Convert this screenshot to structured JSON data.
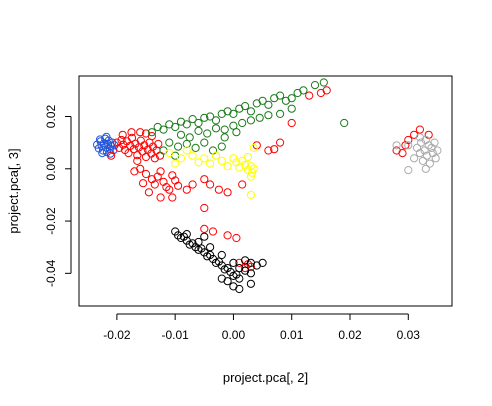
{
  "chart_data": {
    "type": "scatter",
    "xlabel": "project.pca[, 2]",
    "ylabel": "project.pca[, 3]",
    "xlim": [
      -0.0265,
      0.0375
    ],
    "ylim": [
      -0.0525,
      0.0355
    ],
    "x_ticks": [
      -0.02,
      -0.01,
      0.0,
      0.01,
      0.02,
      0.03
    ],
    "x_tick_labels": [
      "-0.02",
      "-0.01",
      "0.00",
      "0.01",
      "0.02",
      "0.03"
    ],
    "y_ticks": [
      -0.04,
      -0.02,
      0.0,
      0.02
    ],
    "y_tick_labels": [
      "-0.04",
      "-0.02",
      "0.00",
      "0.02"
    ],
    "grid": false,
    "legend": "none",
    "marker": "open-circle",
    "series": [
      {
        "color": "#2255dd",
        "points": [
          [
            -0.0234,
            0.0092
          ],
          [
            -0.0231,
            0.0078
          ],
          [
            -0.0228,
            0.0105
          ],
          [
            -0.0226,
            0.0088
          ],
          [
            -0.0224,
            0.007
          ],
          [
            -0.0222,
            0.0098
          ],
          [
            -0.022,
            0.0115
          ],
          [
            -0.0219,
            0.0082
          ],
          [
            -0.0217,
            0.0064
          ],
          [
            -0.0215,
            0.0095
          ],
          [
            -0.0214,
            0.0108
          ],
          [
            -0.0212,
            0.0076
          ],
          [
            -0.021,
            0.0088
          ],
          [
            -0.0208,
            0.01
          ],
          [
            -0.0206,
            0.0071
          ],
          [
            -0.0204,
            0.009
          ],
          [
            -0.0225,
            0.006
          ],
          [
            -0.0218,
            0.0122
          ],
          [
            -0.0211,
            0.0058
          ],
          [
            -0.0229,
            0.0112
          ]
        ]
      },
      {
        "color": "#ff0000",
        "points": [
          [
            -0.02,
            0.01
          ],
          [
            -0.0196,
            0.008
          ],
          [
            -0.0192,
            0.011
          ],
          [
            -0.0189,
            0.0092
          ],
          [
            -0.0186,
            0.0072
          ],
          [
            -0.0183,
            0.0105
          ],
          [
            -0.018,
            0.006
          ],
          [
            -0.0177,
            0.0088
          ],
          [
            -0.0174,
            0.0118
          ],
          [
            -0.0171,
            0.0075
          ],
          [
            -0.0168,
            0.0096
          ],
          [
            -0.0165,
            0.0052
          ],
          [
            -0.0162,
            0.0082
          ],
          [
            -0.0159,
            0.0108
          ],
          [
            -0.0156,
            0.0066
          ],
          [
            -0.0153,
            0.009
          ],
          [
            -0.015,
            0.0045
          ],
          [
            -0.0147,
            0.0073
          ],
          [
            -0.0144,
            0.01
          ],
          [
            -0.0141,
            0.0058
          ],
          [
            -0.0138,
            0.0085
          ],
          [
            -0.0135,
            0.004
          ],
          [
            -0.0132,
            0.007
          ],
          [
            -0.0129,
            0.0095
          ],
          [
            -0.0126,
            0.005
          ],
          [
            -0.016,
            0.0
          ],
          [
            -0.015,
            -0.002
          ],
          [
            -0.014,
            -0.004
          ],
          [
            -0.0135,
            -0.006
          ],
          [
            -0.013,
            -0.003
          ],
          [
            -0.0125,
            -0.001
          ],
          [
            -0.012,
            -0.005
          ],
          [
            -0.0115,
            -0.007
          ],
          [
            -0.011,
            -0.008
          ],
          [
            -0.0105,
            -0.0025
          ],
          [
            -0.01,
            -0.0045
          ],
          [
            -0.0095,
            -0.0065
          ],
          [
            -0.017,
            -0.001
          ],
          [
            -0.0155,
            -0.0055
          ],
          [
            -0.0145,
            -0.009
          ],
          [
            -0.0125,
            -0.011
          ],
          [
            -0.0105,
            -0.011
          ],
          [
            -0.015,
            0.0135
          ],
          [
            -0.016,
            0.014
          ],
          [
            -0.014,
            0.0125
          ],
          [
            -0.008,
            -0.008
          ],
          [
            -0.007,
            -0.006
          ],
          [
            -0.005,
            -0.004
          ],
          [
            -0.004,
            -0.006
          ],
          [
            -0.0025,
            -0.008
          ],
          [
            -0.001,
            -0.009
          ],
          [
            0.0015,
            -0.006
          ],
          [
            -0.005,
            -0.015
          ],
          [
            -0.005,
            -0.023
          ],
          [
            -0.0035,
            -0.024
          ],
          [
            -0.001,
            -0.0255
          ],
          [
            0.0005,
            -0.0265
          ],
          [
            0.001,
            -0.036
          ],
          [
            0.002,
            -0.038
          ],
          [
            0.0025,
            -0.0365
          ],
          [
            0.003,
            -0.0375
          ],
          [
            0.004,
            0.009
          ],
          [
            0.006,
            0.007
          ],
          [
            0.007,
            0.0075
          ],
          [
            0.008,
            0.01
          ],
          [
            0.01,
            0.0175
          ],
          [
            0.013,
            0.028
          ],
          [
            0.015,
            0.029
          ],
          [
            0.016,
            0.03
          ],
          [
            0.028,
            0.007
          ],
          [
            0.029,
            0.006
          ],
          [
            0.0295,
            0.009
          ],
          [
            0.03,
            0.011
          ],
          [
            0.031,
            0.013
          ],
          [
            0.032,
            0.015
          ],
          [
            0.0335,
            0.013
          ],
          [
            -0.021,
            0.005
          ],
          [
            -0.019,
            0.013
          ],
          [
            -0.0175,
            0.014
          ],
          [
            -0.0165,
            0.003
          ]
        ]
      },
      {
        "color": "#1a7a1a",
        "points": [
          [
            -0.014,
            0.014
          ],
          [
            -0.013,
            0.016
          ],
          [
            -0.012,
            0.015
          ],
          [
            -0.011,
            0.017
          ],
          [
            -0.01,
            0.016
          ],
          [
            -0.009,
            0.018
          ],
          [
            -0.008,
            0.017
          ],
          [
            -0.007,
            0.019
          ],
          [
            -0.006,
            0.0175
          ],
          [
            -0.005,
            0.0195
          ],
          [
            -0.004,
            0.02
          ],
          [
            -0.003,
            0.0185
          ],
          [
            -0.002,
            0.021
          ],
          [
            -0.001,
            0.022
          ],
          [
            0.0,
            0.021
          ],
          [
            0.001,
            0.023
          ],
          [
            0.002,
            0.024
          ],
          [
            0.003,
            0.022
          ],
          [
            0.004,
            0.025
          ],
          [
            0.005,
            0.026
          ],
          [
            0.006,
            0.0245
          ],
          [
            0.007,
            0.027
          ],
          [
            0.008,
            0.028
          ],
          [
            0.009,
            0.026
          ],
          [
            0.01,
            0.027
          ],
          [
            0.011,
            0.029
          ],
          [
            0.012,
            0.03
          ],
          [
            0.014,
            0.032
          ],
          [
            0.0155,
            0.033
          ],
          [
            -0.009,
            0.013
          ],
          [
            -0.0075,
            0.012
          ],
          [
            -0.006,
            0.0145
          ],
          [
            -0.0045,
            0.0135
          ],
          [
            -0.003,
            0.0155
          ],
          [
            -0.0015,
            0.015
          ],
          [
            0.0,
            0.0165
          ],
          [
            0.0015,
            0.0175
          ],
          [
            0.003,
            0.0185
          ],
          [
            0.0045,
            0.0195
          ],
          [
            0.006,
            0.0205
          ],
          [
            -0.011,
            0.01
          ],
          [
            -0.0095,
            0.0085
          ],
          [
            -0.008,
            0.0095
          ],
          [
            -0.0065,
            0.008
          ],
          [
            -0.005,
            0.01
          ],
          [
            -0.0035,
            0.007
          ],
          [
            -0.002,
            0.0085
          ],
          [
            0.019,
            0.0175
          ],
          [
            0.008,
            0.021
          ],
          [
            0.01,
            0.023
          ],
          [
            -0.012,
            0.007
          ],
          [
            -0.01,
            0.005
          ],
          [
            -0.0015,
            0.012
          ],
          [
            0.0005,
            0.014
          ]
        ]
      },
      {
        "color": "#ffff00",
        "points": [
          [
            -0.011,
            0.006
          ],
          [
            -0.009,
            0.004
          ],
          [
            -0.007,
            0.005
          ],
          [
            -0.005,
            0.004
          ],
          [
            -0.004,
            0.002
          ],
          [
            -0.003,
            0.005
          ],
          [
            -0.002,
            0.003
          ],
          [
            -0.001,
            0.001
          ],
          [
            0.0,
            0.004
          ],
          [
            0.0005,
            0.0025
          ],
          [
            0.001,
            0.0005
          ],
          [
            0.0015,
            0.003
          ],
          [
            0.002,
            0.0015
          ],
          [
            0.0025,
            -0.0005
          ],
          [
            0.003,
            0.001
          ],
          [
            0.0032,
            -0.0015
          ],
          [
            0.0035,
            0.0
          ],
          [
            0.003,
            -0.003
          ],
          [
            0.0025,
            0.0045
          ],
          [
            -0.008,
            0.007
          ],
          [
            -0.01,
            0.002
          ],
          [
            -0.006,
            0.0025
          ],
          [
            0.0035,
            0.008
          ],
          [
            0.003,
            -0.01
          ]
        ]
      },
      {
        "color": "#000000",
        "points": [
          [
            -0.01,
            -0.024
          ],
          [
            -0.0095,
            -0.0255
          ],
          [
            -0.009,
            -0.0265
          ],
          [
            -0.0085,
            -0.026
          ],
          [
            -0.008,
            -0.0275
          ],
          [
            -0.0075,
            -0.029
          ],
          [
            -0.007,
            -0.0285
          ],
          [
            -0.0065,
            -0.03
          ],
          [
            -0.006,
            -0.031
          ],
          [
            -0.0055,
            -0.0305
          ],
          [
            -0.005,
            -0.032
          ],
          [
            -0.0045,
            -0.0335
          ],
          [
            -0.004,
            -0.033
          ],
          [
            -0.0035,
            -0.0345
          ],
          [
            -0.003,
            -0.036
          ],
          [
            -0.0025,
            -0.0355
          ],
          [
            -0.002,
            -0.037
          ],
          [
            -0.0015,
            -0.0385
          ],
          [
            -0.001,
            -0.038
          ],
          [
            -0.0005,
            -0.0395
          ],
          [
            0.0,
            -0.041
          ],
          [
            0.0005,
            -0.0405
          ],
          [
            0.001,
            -0.042
          ],
          [
            -0.008,
            -0.025
          ],
          [
            -0.006,
            -0.028
          ],
          [
            -0.004,
            -0.03
          ],
          [
            -0.002,
            -0.033
          ],
          [
            0.0,
            -0.036
          ],
          [
            0.001,
            -0.038
          ],
          [
            0.002,
            -0.039
          ],
          [
            0.003,
            -0.04
          ],
          [
            0.004,
            -0.037
          ],
          [
            0.005,
            -0.036
          ],
          [
            0.003,
            -0.036
          ],
          [
            0.002,
            -0.035
          ],
          [
            -0.005,
            -0.026
          ],
          [
            -0.001,
            -0.043
          ],
          [
            0.0,
            -0.045
          ],
          [
            0.001,
            -0.046
          ],
          [
            -0.002,
            -0.042
          ],
          [
            0.003,
            -0.044
          ]
        ]
      },
      {
        "color": "#aaaaaa",
        "points": [
          [
            0.03,
            0.009
          ],
          [
            0.031,
            0.004
          ],
          [
            0.0315,
            0.008
          ],
          [
            0.032,
            0.006
          ],
          [
            0.0322,
            0.01
          ],
          [
            0.0325,
            0.003
          ],
          [
            0.0328,
            0.007
          ],
          [
            0.033,
            0.011
          ],
          [
            0.0332,
            0.005
          ],
          [
            0.0335,
            0.009
          ],
          [
            0.0337,
            0.002
          ],
          [
            0.034,
            0.008
          ],
          [
            0.0342,
            0.006
          ],
          [
            0.0345,
            0.01
          ],
          [
            0.0347,
            0.004
          ],
          [
            0.035,
            0.007
          ],
          [
            0.032,
            0.012
          ],
          [
            0.033,
            0.0
          ],
          [
            0.028,
            0.009
          ],
          [
            0.03,
            -0.0005
          ]
        ]
      }
    ]
  }
}
